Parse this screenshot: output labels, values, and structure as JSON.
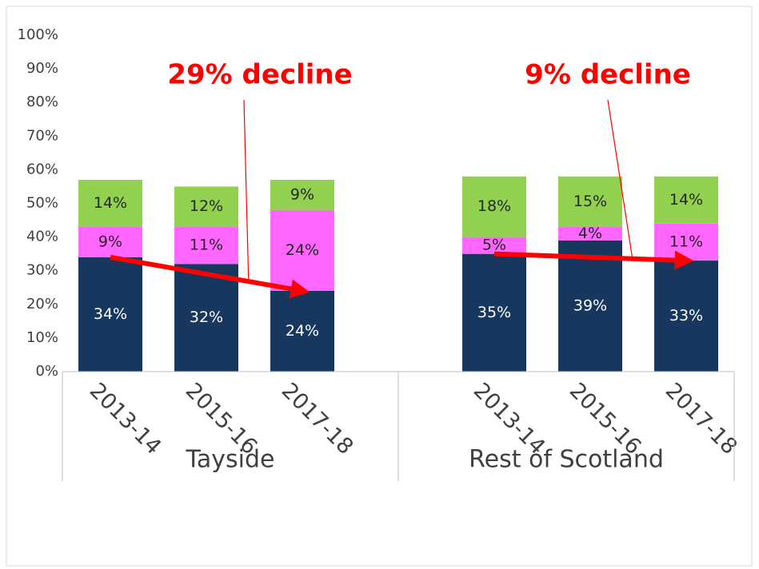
{
  "chart_data": {
    "type": "stacked_bar",
    "groups": [
      "Tayside",
      "Rest of Scotland"
    ],
    "categories": [
      "2013-14",
      "2015-16",
      "2017-18",
      "2013-14",
      "2015-16",
      "2017-18"
    ],
    "series": [
      {
        "color": "#17375e",
        "values": [
          34,
          32,
          24,
          35,
          39,
          33
        ],
        "value_labels": [
          "34%",
          "32%",
          "24%",
          "35%",
          "39%",
          "33%"
        ]
      },
      {
        "color": "#ff66ff",
        "values": [
          9,
          11,
          24,
          5,
          4,
          11
        ],
        "value_labels": [
          "9%",
          "11%",
          "24%",
          "5%",
          "4%",
          "11%"
        ]
      },
      {
        "color": "#92d050",
        "values": [
          14,
          12,
          9,
          18,
          15,
          14
        ],
        "value_labels": [
          "14%",
          "12%",
          "9%",
          "18%",
          "15%",
          "14%"
        ]
      }
    ],
    "ylim": [
      0,
      100
    ],
    "yticks": [
      {
        "value": 0,
        "label": "0%"
      },
      {
        "value": 10,
        "label": "10%"
      },
      {
        "value": 20,
        "label": "20%"
      },
      {
        "value": 30,
        "label": "30%"
      },
      {
        "value": 40,
        "label": "40%"
      },
      {
        "value": 50,
        "label": "50%"
      },
      {
        "value": 60,
        "label": "60%"
      },
      {
        "value": 70,
        "label": "70%"
      },
      {
        "value": 80,
        "label": "80%"
      },
      {
        "value": 90,
        "label": "90%"
      },
      {
        "value": 100,
        "label": "100%"
      }
    ],
    "annotations": [
      "29% decline",
      "9% decline"
    ],
    "annotation_color": "#ff0000"
  }
}
